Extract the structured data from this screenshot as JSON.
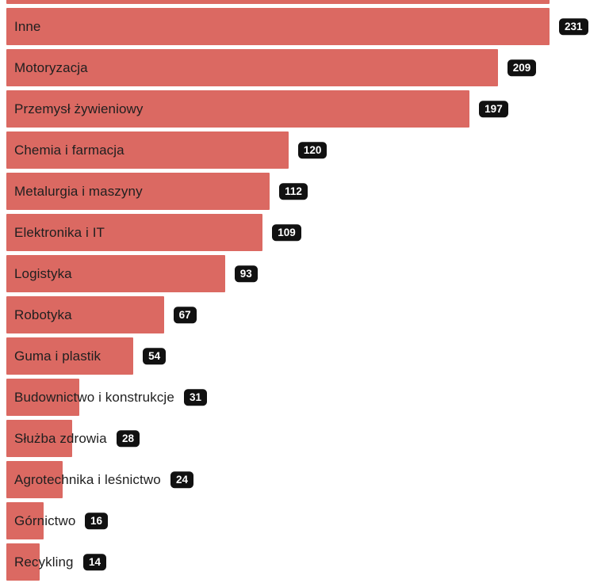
{
  "chart_data": {
    "type": "bar",
    "orientation": "horizontal",
    "title": "",
    "xlabel": "",
    "ylabel": "",
    "xlim": [
      0,
      231
    ],
    "grid": false,
    "legend": false,
    "categories": [
      "Inne",
      "Motoryzacja",
      "Przemysł żywieniowy",
      "Chemia i farmacja",
      "Metalurgia i maszyny",
      "Elektronika i IT",
      "Logistyka",
      "Robotyka",
      "Guma i plastik",
      "Budownictwo i konstrukcje",
      "Służba zdrowia",
      "Agrotechnika i leśnictwo",
      "Górnictwo",
      "Recykling"
    ],
    "values": [
      231,
      209,
      197,
      120,
      112,
      109,
      93,
      67,
      54,
      31,
      28,
      24,
      16,
      14
    ],
    "value_label_style": "black rounded badge with white bold number",
    "cropped_bar_at_top": true,
    "colors": {
      "bar": "#db6962",
      "badge_bg": "#111111",
      "badge_text": "#ffffff",
      "label_text": "#1f1f1f",
      "background": "#ffffff"
    }
  }
}
